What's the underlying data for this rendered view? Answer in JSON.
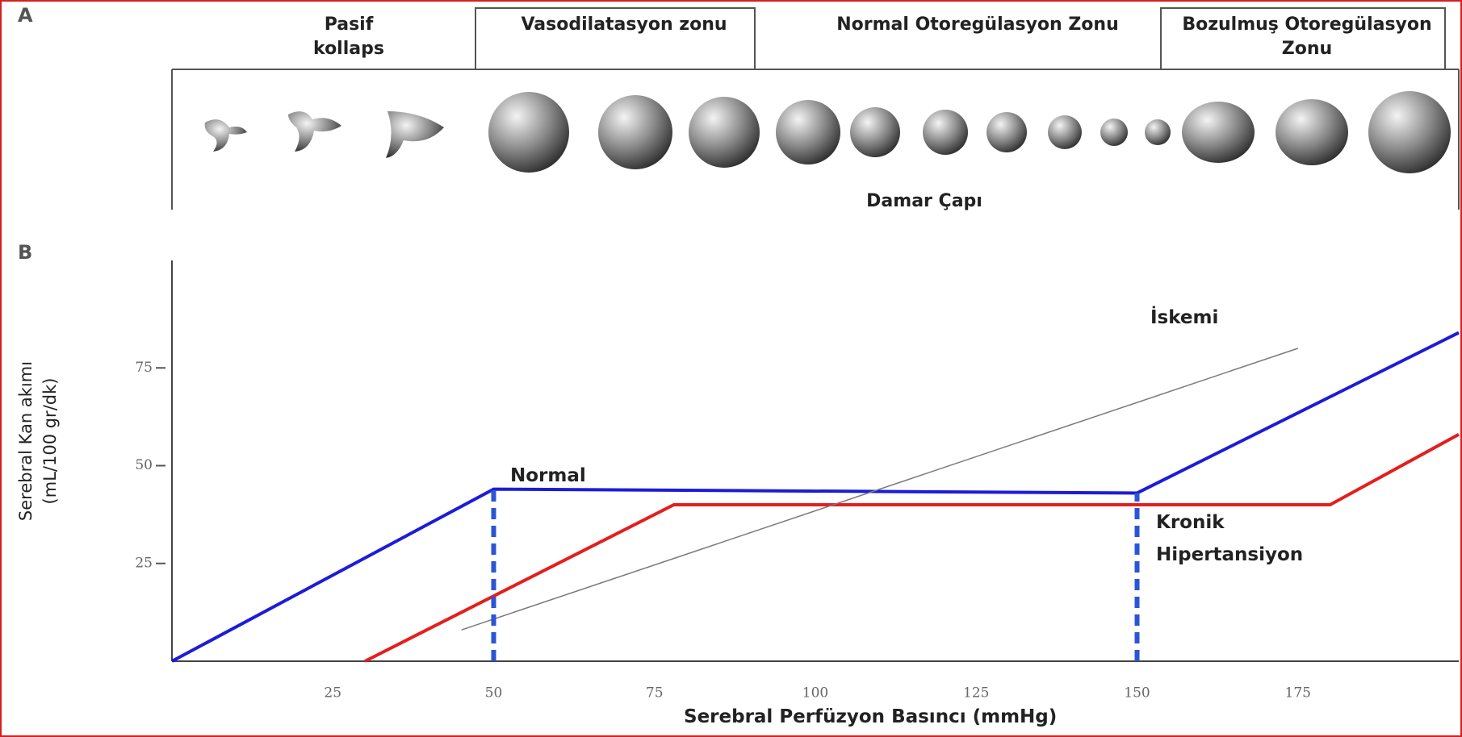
{
  "panel_a": {
    "label": "A",
    "zones": [
      "Pasif kollaps",
      "Vasodilatasyon zonu",
      "Normal Otoregülasyon Zonu",
      "Bozulmuş Otoregülasyon Zonu"
    ],
    "caption": "Damar Çapı"
  },
  "chart_data": {
    "type": "line",
    "panel_label": "B",
    "xlabel": "Serebral Perfüzyon Basıncı (mmHg)",
    "ylabel": "Serebral Kan akımı (mL/100 gr/dk)",
    "xlim": [
      0,
      200
    ],
    "ylim": [
      0,
      100
    ],
    "xticks": [
      25,
      50,
      75,
      100,
      125,
      150,
      175
    ],
    "yticks": [
      25,
      50,
      75
    ],
    "grid": false,
    "series": [
      {
        "name": "Normal",
        "color": "#1c1cd8",
        "x": [
          0,
          50,
          150,
          200
        ],
        "values": [
          0,
          44,
          43,
          84
        ]
      },
      {
        "name": "Kronik Hipertansiyon",
        "color": "#e41e1e",
        "x": [
          30,
          78,
          180,
          200
        ],
        "values": [
          0,
          40,
          40,
          58
        ]
      },
      {
        "name": "İskemi",
        "color": "#7a7a7a",
        "x": [
          45,
          175
        ],
        "values": [
          8,
          80
        ]
      }
    ],
    "reference_lines": {
      "color": "#2a55d6",
      "x": [
        50,
        150
      ]
    }
  }
}
